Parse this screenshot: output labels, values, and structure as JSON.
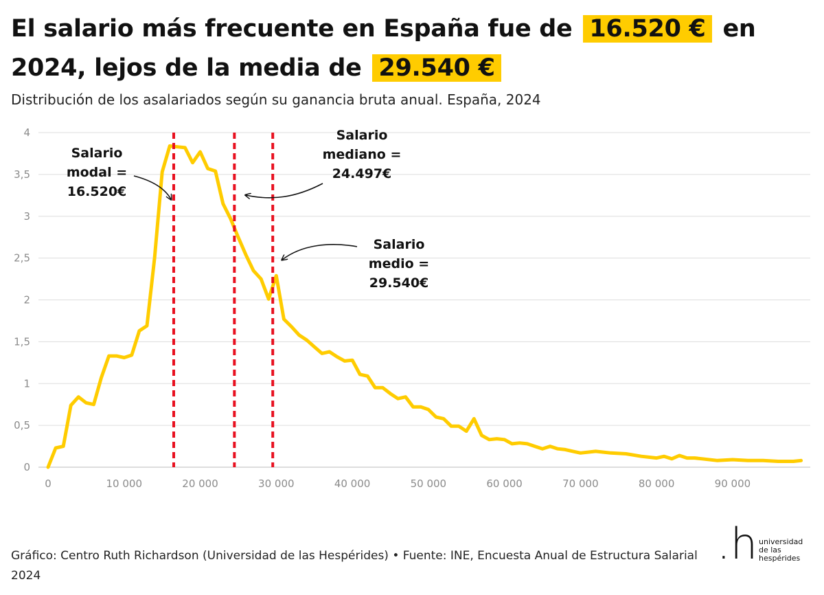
{
  "header": {
    "title_part1": "El salario más frecuente en España fue de",
    "title_highlight1": "16.520 €",
    "title_part2": "en 2024, lejos de la media de",
    "title_highlight2": "29.540 €",
    "subtitle": "Distribución de los asalariados según su ganancia bruta anual. España, 2024"
  },
  "colors": {
    "accent": "#ffcc00",
    "line": "#ffcc00",
    "reference_lines": "#e8101f",
    "grid": "#dddddd",
    "tick_text": "#8a8a8a"
  },
  "chart_data": {
    "type": "line",
    "title": "",
    "xlabel": "",
    "ylabel": "",
    "xlim": [
      0,
      100000
    ],
    "ylim": [
      0,
      4
    ],
    "grid": true,
    "legend": "none",
    "x_ticks": [
      0,
      10000,
      20000,
      30000,
      40000,
      50000,
      60000,
      70000,
      80000,
      90000
    ],
    "x_tick_labels": [
      "0",
      "10 000",
      "20 000",
      "30 000",
      "40 000",
      "50 000",
      "60 000",
      "70 000",
      "80 000",
      "90 000"
    ],
    "y_ticks": [
      0,
      0.5,
      1,
      1.5,
      2,
      2.5,
      3,
      3.5,
      4
    ],
    "y_tick_labels": [
      "0",
      "0,5",
      "1",
      "1,5",
      "2",
      "2,5",
      "3",
      "3,5",
      "4"
    ],
    "series": [
      {
        "x": [
          0,
          1000,
          2000,
          3000,
          4000,
          5000,
          6000,
          7000,
          8000,
          9000,
          10000,
          11000,
          12000,
          13000,
          14000,
          15000,
          16000,
          17000,
          18000,
          19000,
          20000,
          21000,
          22000,
          23000,
          24000,
          25000,
          26000,
          27000,
          28000,
          29000,
          30000,
          31000,
          32000,
          33000,
          34000,
          35000,
          36000,
          37000,
          38000,
          39000,
          40000,
          41000,
          42000,
          43000,
          44000,
          45000,
          46000,
          47000,
          48000,
          49000,
          50000,
          51000,
          52000,
          53000,
          54000,
          55000,
          56000,
          57000,
          58000,
          59000,
          60000,
          61000,
          62000,
          63000,
          64000,
          65000,
          66000,
          67000,
          68000,
          69000,
          70000,
          72000,
          74000,
          76000,
          78000,
          80000,
          81000,
          82000,
          83000,
          84000,
          85000,
          86000,
          88000,
          90000,
          92000,
          94000,
          96000,
          98000,
          99000
        ],
        "values": [
          0.0,
          0.23,
          0.25,
          0.74,
          0.84,
          0.77,
          0.75,
          1.07,
          1.33,
          1.33,
          1.31,
          1.34,
          1.63,
          1.69,
          2.5,
          3.53,
          3.84,
          3.83,
          3.82,
          3.64,
          3.77,
          3.57,
          3.54,
          3.15,
          2.97,
          2.75,
          2.54,
          2.35,
          2.25,
          2.01,
          2.29,
          1.77,
          1.68,
          1.58,
          1.52,
          1.44,
          1.36,
          1.38,
          1.32,
          1.27,
          1.28,
          1.11,
          1.09,
          0.95,
          0.95,
          0.88,
          0.82,
          0.84,
          0.72,
          0.72,
          0.69,
          0.6,
          0.58,
          0.49,
          0.49,
          0.43,
          0.58,
          0.38,
          0.33,
          0.34,
          0.33,
          0.28,
          0.29,
          0.28,
          0.25,
          0.22,
          0.25,
          0.22,
          0.21,
          0.19,
          0.17,
          0.19,
          0.17,
          0.16,
          0.13,
          0.11,
          0.13,
          0.1,
          0.14,
          0.11,
          0.11,
          0.1,
          0.08,
          0.09,
          0.08,
          0.08,
          0.07,
          0.07,
          0.08
        ]
      }
    ],
    "reference_lines": [
      {
        "x": 16520,
        "label": [
          "Salario",
          "modal =",
          "16.520€"
        ]
      },
      {
        "x": 24497,
        "label": [
          "Salario",
          "mediano =",
          "24.497€"
        ]
      },
      {
        "x": 29540,
        "label": [
          "Salario",
          "medio =",
          "29.540€"
        ]
      }
    ]
  },
  "footer": {
    "credit": "Gráfico: Centro Ruth Richardson (Universidad de las Hespérides) • Fuente: INE, Encuesta Anual de Estructura Salarial 2024"
  },
  "logo": {
    "mark": ".h",
    "line1": "universidad",
    "line2": "de las",
    "line3": "hespérides"
  }
}
